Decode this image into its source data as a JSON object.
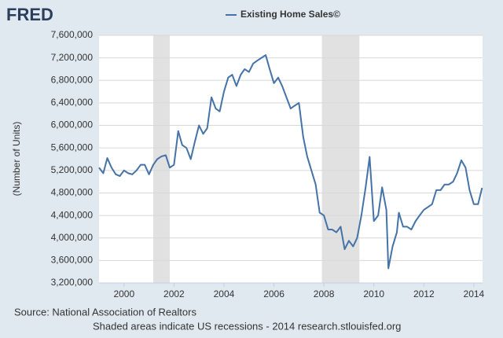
{
  "chart_data": {
    "type": "line",
    "logo": "FRED",
    "y_label": "(Number of Units)",
    "source": "Source: National Association of Realtors",
    "note": "Shaded areas indicate US recessions - 2014 research.stlouisfed.org",
    "grid": true,
    "xlim": [
      1999,
      2014.35
    ],
    "xticks": [
      2000,
      2002,
      2004,
      2006,
      2008,
      2010,
      2012,
      2014
    ],
    "ylim": [
      3200000,
      7600000
    ],
    "yticks": [
      {
        "value": 3200000,
        "label": "3,200,000"
      },
      {
        "value": 3600000,
        "label": "3,600,000"
      },
      {
        "value": 4000000,
        "label": "4,000,000"
      },
      {
        "value": 4400000,
        "label": "4,400,000"
      },
      {
        "value": 4800000,
        "label": "4,800,000"
      },
      {
        "value": 5200000,
        "label": "5,200,000"
      },
      {
        "value": 5600000,
        "label": "5,600,000"
      },
      {
        "value": 6000000,
        "label": "6,000,000"
      },
      {
        "value": 6400000,
        "label": "6,400,000"
      },
      {
        "value": 6800000,
        "label": "6,800,000"
      },
      {
        "value": 7200000,
        "label": "7,200,000"
      },
      {
        "value": 7600000,
        "label": "7,600,000"
      }
    ],
    "recessions": [
      [
        2001.17,
        2001.83
      ],
      [
        2007.92,
        2009.42
      ]
    ],
    "recession_color": "#e1e1e1",
    "x": [
      1999.0,
      1999.17,
      1999.33,
      1999.5,
      1999.67,
      1999.83,
      2000.0,
      2000.17,
      2000.33,
      2000.5,
      2000.67,
      2000.83,
      2001.0,
      2001.17,
      2001.33,
      2001.5,
      2001.67,
      2001.83,
      2002.0,
      2002.17,
      2002.33,
      2002.5,
      2002.67,
      2002.83,
      2003.0,
      2003.17,
      2003.33,
      2003.5,
      2003.67,
      2003.83,
      2004.0,
      2004.17,
      2004.33,
      2004.5,
      2004.67,
      2004.83,
      2005.0,
      2005.17,
      2005.33,
      2005.5,
      2005.67,
      2005.83,
      2006.0,
      2006.17,
      2006.33,
      2006.5,
      2006.67,
      2006.83,
      2007.0,
      2007.17,
      2007.33,
      2007.5,
      2007.67,
      2007.83,
      2008.0,
      2008.17,
      2008.33,
      2008.5,
      2008.67,
      2008.83,
      2009.0,
      2009.17,
      2009.33,
      2009.5,
      2009.67,
      2009.83,
      2010.0,
      2010.17,
      2010.33,
      2010.5,
      2010.58,
      2010.75,
      2010.92,
      2011.0,
      2011.17,
      2011.33,
      2011.5,
      2011.67,
      2011.83,
      2012.0,
      2012.17,
      2012.33,
      2012.5,
      2012.67,
      2012.83,
      2013.0,
      2013.17,
      2013.33,
      2013.5,
      2013.67,
      2013.83,
      2014.0,
      2014.17,
      2014.33
    ],
    "series": [
      {
        "name": "Existing Home Sales©",
        "color": "#4572a7",
        "values": [
          5250000,
          5150000,
          5420000,
          5250000,
          5130000,
          5100000,
          5200000,
          5150000,
          5130000,
          5200000,
          5300000,
          5300000,
          5130000,
          5300000,
          5400000,
          5450000,
          5470000,
          5250000,
          5300000,
          5900000,
          5650000,
          5600000,
          5400000,
          5700000,
          6000000,
          5850000,
          5950000,
          6500000,
          6300000,
          6250000,
          6600000,
          6850000,
          6900000,
          6700000,
          6900000,
          7000000,
          6950000,
          7100000,
          7150000,
          7200000,
          7250000,
          7000000,
          6750000,
          6850000,
          6700000,
          6500000,
          6300000,
          6350000,
          6400000,
          5800000,
          5450000,
          5200000,
          4950000,
          4450000,
          4400000,
          4150000,
          4150000,
          4100000,
          4200000,
          3800000,
          3950000,
          3850000,
          4000000,
          4400000,
          4900000,
          5440000,
          4300000,
          4400000,
          4900000,
          4500000,
          3460000,
          3850000,
          4100000,
          4450000,
          4200000,
          4200000,
          4150000,
          4300000,
          4400000,
          4500000,
          4550000,
          4600000,
          4850000,
          4850000,
          4950000,
          4950000,
          5000000,
          5150000,
          5380000,
          5250000,
          4850000,
          4600000,
          4600000,
          4890000
        ]
      }
    ]
  }
}
